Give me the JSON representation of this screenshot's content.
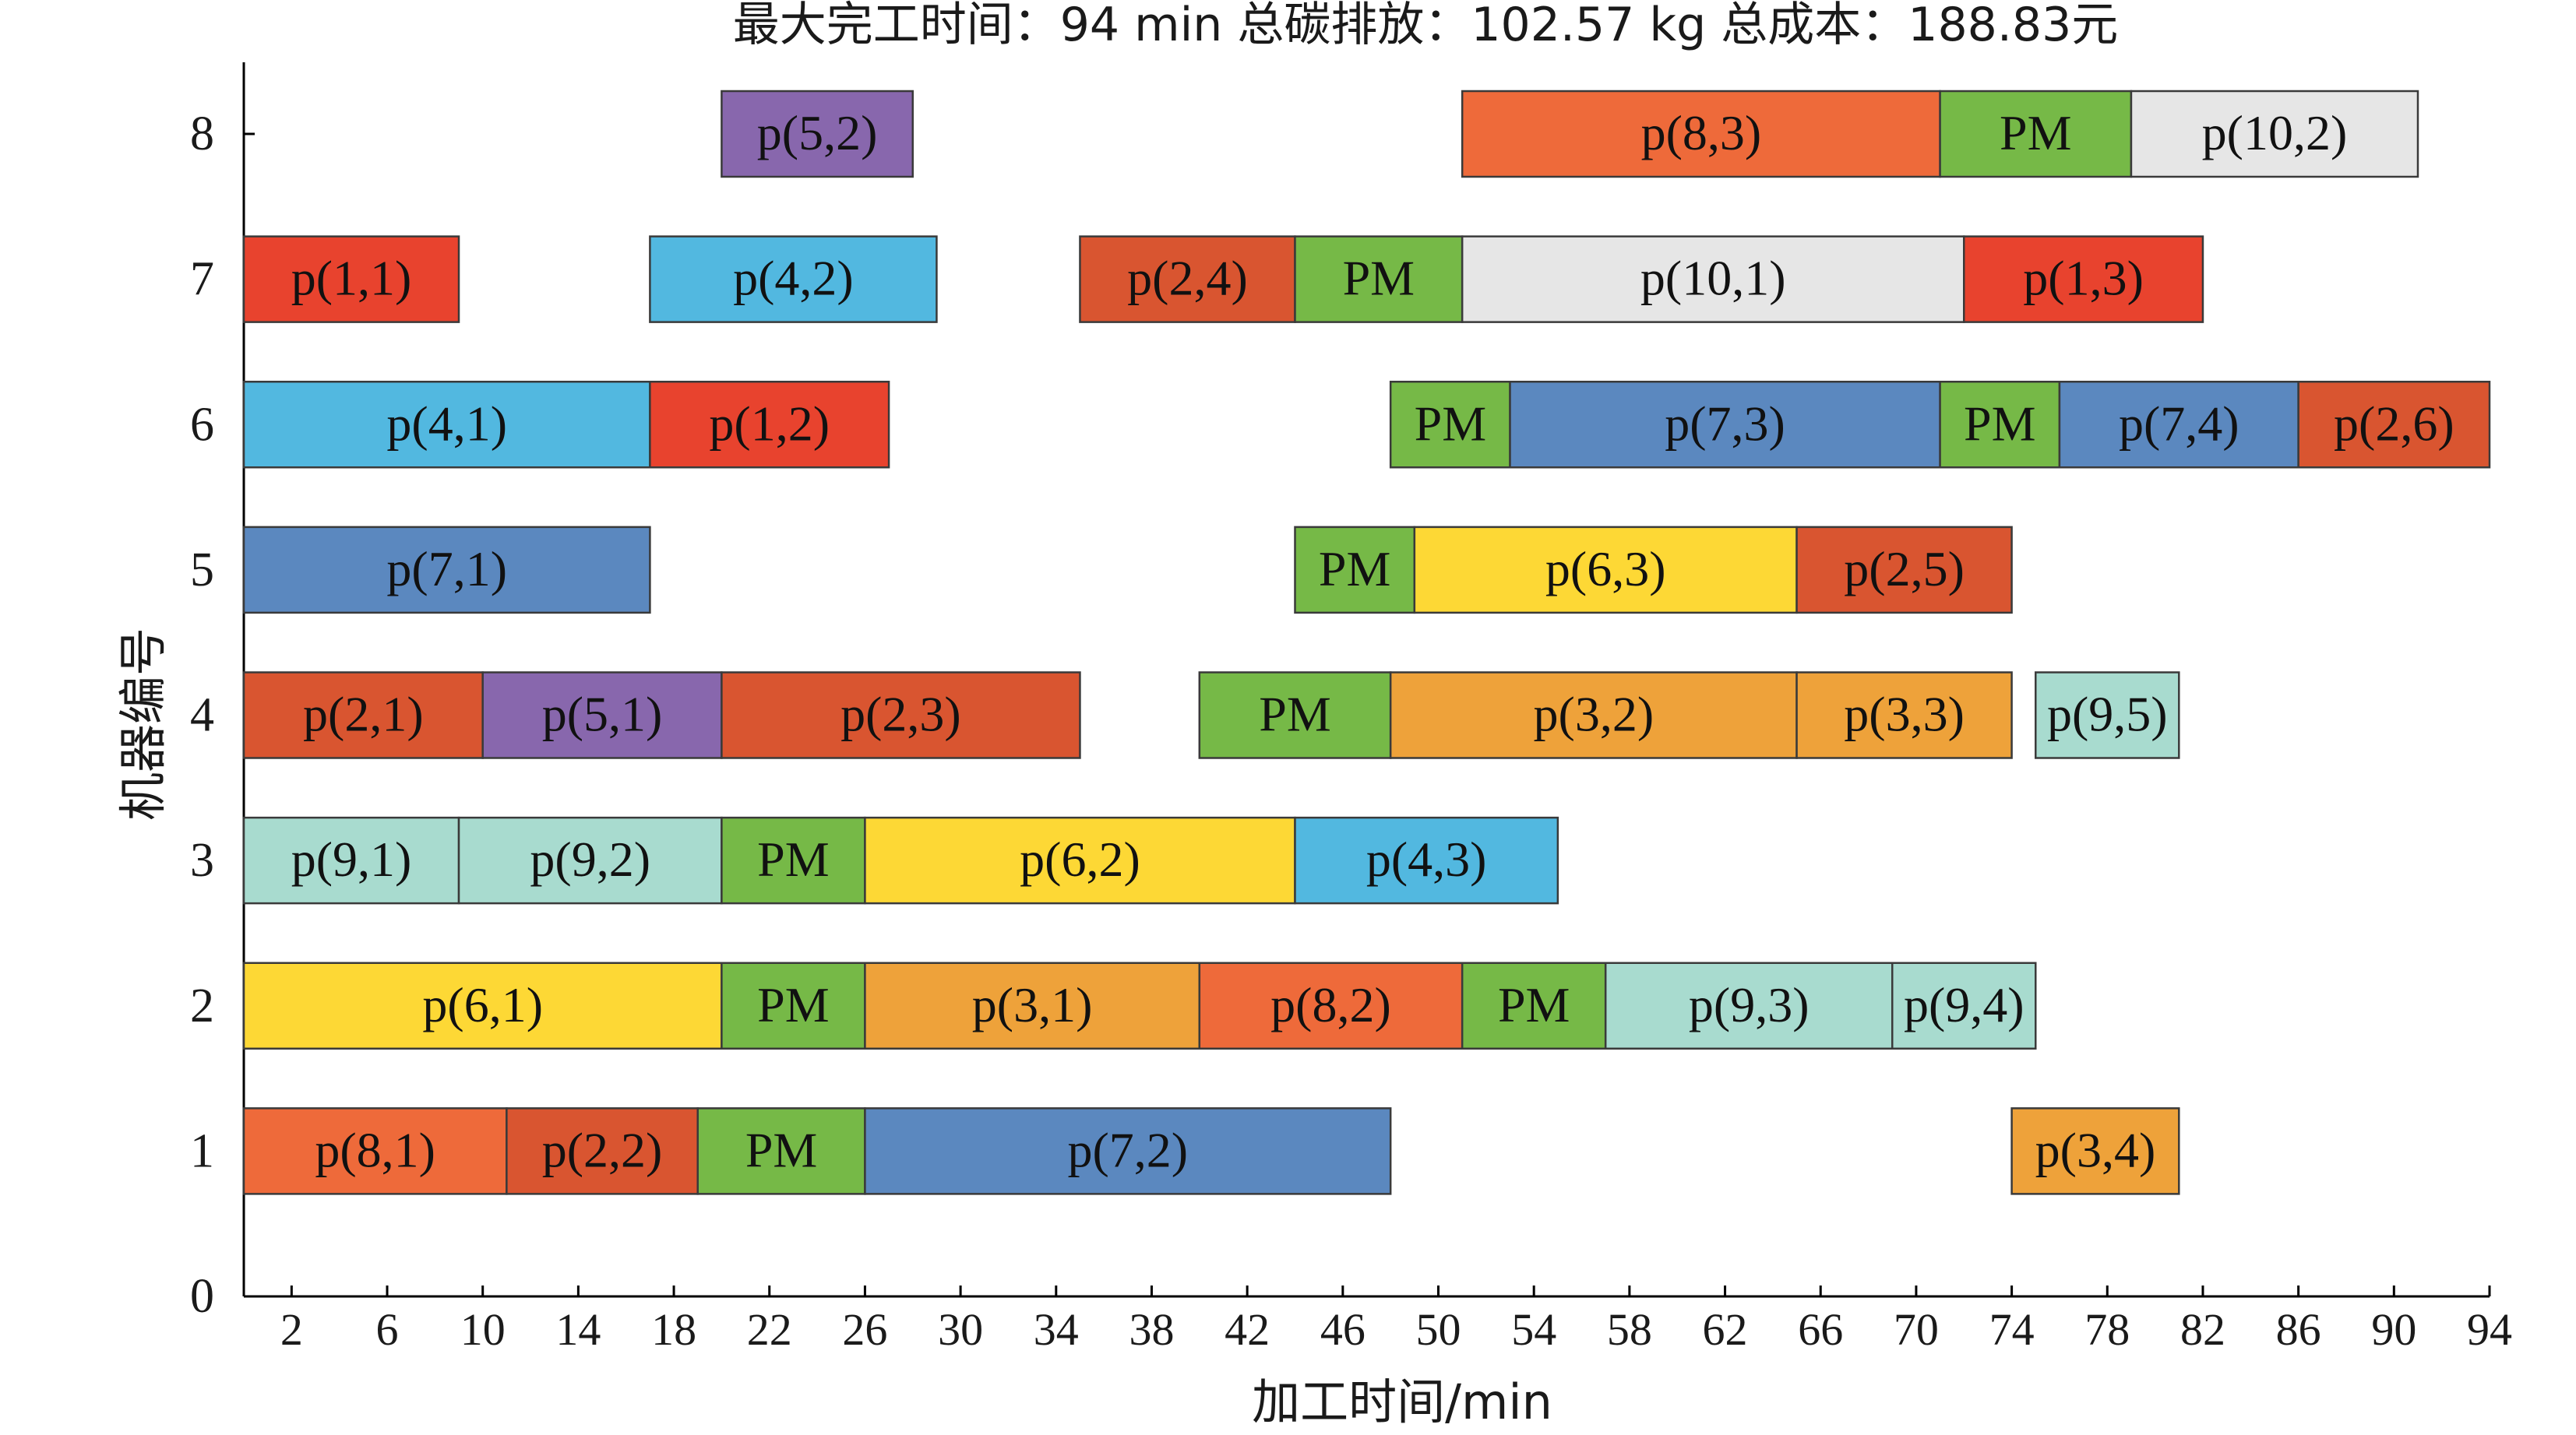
{
  "chart_data": {
    "type": "gantt",
    "title": "最大完工时间：94 min 总碳排放：102.57 kg 总成本：188.83元",
    "xlabel": "加工时间/min",
    "ylabel": "机器编号",
    "xlim": [
      0,
      94
    ],
    "ylim": [
      0,
      8
    ],
    "x_ticks": [
      2,
      6,
      10,
      14,
      18,
      22,
      26,
      30,
      34,
      38,
      42,
      46,
      50,
      54,
      58,
      62,
      66,
      70,
      74,
      78,
      82,
      86,
      90,
      94
    ],
    "x_tick_values": [
      2,
      6,
      10,
      14,
      18,
      22,
      26,
      30,
      34,
      38,
      42,
      46,
      50,
      54,
      58,
      62,
      66,
      70,
      74,
      78,
      82,
      86,
      90,
      94
    ],
    "y_ticks": [
      0,
      1,
      2,
      3,
      4,
      5,
      6,
      7,
      8
    ],
    "grid": false,
    "colors": {
      "job1": "#e8432e",
      "job2": "#d95530",
      "job3": "#eea23a",
      "job4": "#52b8e0",
      "job5": "#8867ad",
      "job6": "#fdd835",
      "job7": "#5b88bf",
      "job8": "#ee6a3a",
      "job9": "#a8dbcf",
      "job10": "#e6e6e6",
      "pm": "#76b947"
    },
    "tasks": [
      {
        "machine": 8,
        "start": 20,
        "end": 28,
        "label": "p(5,2)",
        "job": "job5"
      },
      {
        "machine": 8,
        "start": 51,
        "end": 71,
        "label": "p(8,3)",
        "job": "job8"
      },
      {
        "machine": 8,
        "start": 71,
        "end": 79,
        "label": "PM",
        "job": "pm"
      },
      {
        "machine": 8,
        "start": 79,
        "end": 91,
        "label": "p(10,2)",
        "job": "job10"
      },
      {
        "machine": 7,
        "start": 0,
        "end": 9,
        "label": "p(1,1)",
        "job": "job1"
      },
      {
        "machine": 7,
        "start": 17,
        "end": 29,
        "label": "p(4,2)",
        "job": "job4"
      },
      {
        "machine": 7,
        "start": 35,
        "end": 44,
        "label": "p(2,4)",
        "job": "job2"
      },
      {
        "machine": 7,
        "start": 44,
        "end": 51,
        "label": "PM",
        "job": "pm"
      },
      {
        "machine": 7,
        "start": 51,
        "end": 72,
        "label": "p(10,1)",
        "job": "job10"
      },
      {
        "machine": 7,
        "start": 72,
        "end": 82,
        "label": "p(1,3)",
        "job": "job1"
      },
      {
        "machine": 6,
        "start": 0,
        "end": 17,
        "label": "p(4,1)",
        "job": "job4"
      },
      {
        "machine": 6,
        "start": 17,
        "end": 27,
        "label": "p(1,2)",
        "job": "job1"
      },
      {
        "machine": 6,
        "start": 48,
        "end": 53,
        "label": "PM",
        "job": "pm"
      },
      {
        "machine": 6,
        "start": 53,
        "end": 71,
        "label": "p(7,3)",
        "job": "job7"
      },
      {
        "machine": 6,
        "start": 71,
        "end": 76,
        "label": "PM",
        "job": "pm"
      },
      {
        "machine": 6,
        "start": 76,
        "end": 86,
        "label": "p(7,4)",
        "job": "job7"
      },
      {
        "machine": 6,
        "start": 86,
        "end": 94,
        "label": "p(2,6)",
        "job": "job2"
      },
      {
        "machine": 5,
        "start": 0,
        "end": 17,
        "label": "p(7,1)",
        "job": "job7"
      },
      {
        "machine": 5,
        "start": 44,
        "end": 49,
        "label": "PM",
        "job": "pm"
      },
      {
        "machine": 5,
        "start": 49,
        "end": 65,
        "label": "p(6,3)",
        "job": "job6"
      },
      {
        "machine": 5,
        "start": 65,
        "end": 74,
        "label": "p(2,5)",
        "job": "job2"
      },
      {
        "machine": 4,
        "start": 0,
        "end": 10,
        "label": "p(2,1)",
        "job": "job2"
      },
      {
        "machine": 4,
        "start": 10,
        "end": 20,
        "label": "p(5,1)",
        "job": "job5"
      },
      {
        "machine": 4,
        "start": 20,
        "end": 35,
        "label": "p(2,3)",
        "job": "job2"
      },
      {
        "machine": 4,
        "start": 40,
        "end": 48,
        "label": "PM",
        "job": "pm"
      },
      {
        "machine": 4,
        "start": 48,
        "end": 65,
        "label": "p(3,2)",
        "job": "job3"
      },
      {
        "machine": 4,
        "start": 65,
        "end": 74,
        "label": "p(3,3)",
        "job": "job3"
      },
      {
        "machine": 4,
        "start": 75,
        "end": 81,
        "label": "p(9,5)",
        "job": "job9"
      },
      {
        "machine": 3,
        "start": 0,
        "end": 9,
        "label": "p(9,1)",
        "job": "job9"
      },
      {
        "machine": 3,
        "start": 9,
        "end": 20,
        "label": "p(9,2)",
        "job": "job9"
      },
      {
        "machine": 3,
        "start": 20,
        "end": 26,
        "label": "PM",
        "job": "pm"
      },
      {
        "machine": 3,
        "start": 26,
        "end": 44,
        "label": "p(6,2)",
        "job": "job6"
      },
      {
        "machine": 3,
        "start": 44,
        "end": 55,
        "label": "p(4,3)",
        "job": "job4"
      },
      {
        "machine": 2,
        "start": 0,
        "end": 20,
        "label": "p(6,1)",
        "job": "job6"
      },
      {
        "machine": 2,
        "start": 20,
        "end": 26,
        "label": "PM",
        "job": "pm"
      },
      {
        "machine": 2,
        "start": 26,
        "end": 40,
        "label": "p(3,1)",
        "job": "job3"
      },
      {
        "machine": 2,
        "start": 40,
        "end": 51,
        "label": "p(8,2)",
        "job": "job8"
      },
      {
        "machine": 2,
        "start": 51,
        "end": 57,
        "label": "PM",
        "job": "pm"
      },
      {
        "machine": 2,
        "start": 57,
        "end": 69,
        "label": "p(9,3)",
        "job": "job9"
      },
      {
        "machine": 2,
        "start": 69,
        "end": 75,
        "label": "p(9,4)",
        "job": "job9"
      },
      {
        "machine": 1,
        "start": 0,
        "end": 11,
        "label": "p(8,1)",
        "job": "job8"
      },
      {
        "machine": 1,
        "start": 11,
        "end": 19,
        "label": "p(2,2)",
        "job": "job2"
      },
      {
        "machine": 1,
        "start": 19,
        "end": 26,
        "label": "PM",
        "job": "pm"
      },
      {
        "machine": 1,
        "start": 26,
        "end": 48,
        "label": "p(7,2)",
        "job": "job7"
      },
      {
        "machine": 1,
        "start": 74,
        "end": 81,
        "label": "p(3,4)",
        "job": "job3"
      }
    ]
  }
}
